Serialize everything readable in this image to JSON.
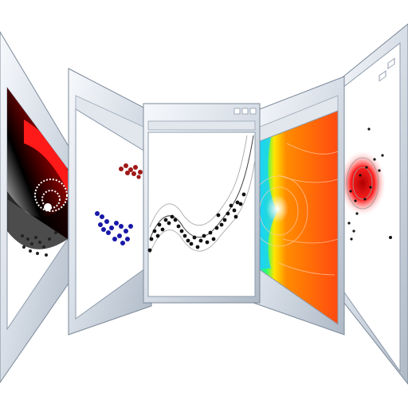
{
  "colors": {
    "background": "#ffffff",
    "frame_light": "#eef2f7",
    "frame_mid": "#c9d2dd",
    "frame_dark": "#8e9bab",
    "outline": "#7d8a99",
    "plot_bg": "#ffffff"
  },
  "panels": [
    {
      "id": "swirl",
      "icon": "swirl-field-plot-icon",
      "accent": "#e01010"
    },
    {
      "id": "clusters",
      "icon": "scatter-clusters-plot-icon",
      "accent": "#1a1aa8"
    },
    {
      "id": "curve",
      "icon": "regression-curve-plot-icon",
      "accent": "#111111"
    },
    {
      "id": "rainbow",
      "icon": "rainbow-flow-field-icon",
      "accent": "#ff5a10"
    },
    {
      "id": "density",
      "icon": "density-scatter-plot-icon",
      "accent": "#d81818"
    }
  ]
}
